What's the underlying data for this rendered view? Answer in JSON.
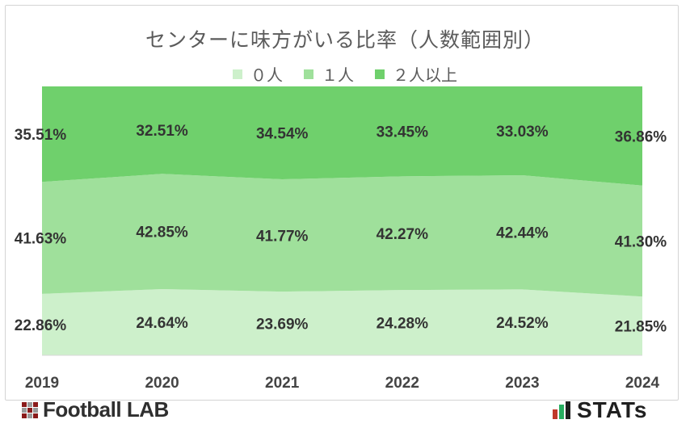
{
  "title": "センターに味方がいる比率（人数範囲別）",
  "branding": {
    "left": "Football LAB",
    "right": "STATs"
  },
  "colors": {
    "zero": "#cdf0cb",
    "one": "#9fe09b",
    "two_plus": "#6fd06c",
    "text": "#333333",
    "title": "#5b5b5b"
  },
  "chart_data": {
    "type": "area",
    "stacked": "percent",
    "categories": [
      "2019",
      "2020",
      "2021",
      "2022",
      "2023",
      "2024"
    ],
    "series": [
      {
        "name": "０人",
        "values": [
          22.86,
          24.64,
          23.69,
          24.28,
          24.52,
          21.85
        ],
        "labels": [
          "22.86%",
          "24.64%",
          "23.69%",
          "24.28%",
          "24.52%",
          "21.85%"
        ],
        "color": "#cdf0cb"
      },
      {
        "name": "１人",
        "values": [
          41.63,
          42.85,
          41.77,
          42.27,
          42.44,
          41.3
        ],
        "labels": [
          "41.63%",
          "42.85%",
          "41.77%",
          "42.27%",
          "42.44%",
          "41.30%"
        ],
        "color": "#9fe09b"
      },
      {
        "name": "２人以上",
        "values": [
          35.51,
          32.51,
          34.54,
          33.45,
          33.03,
          36.86
        ],
        "labels": [
          "35.51%",
          "32.51%",
          "34.54%",
          "33.45%",
          "33.03%",
          "36.86%"
        ],
        "color": "#6fd06c"
      }
    ],
    "ylim": [
      0,
      100
    ],
    "grid": false,
    "legend_position": "top"
  }
}
